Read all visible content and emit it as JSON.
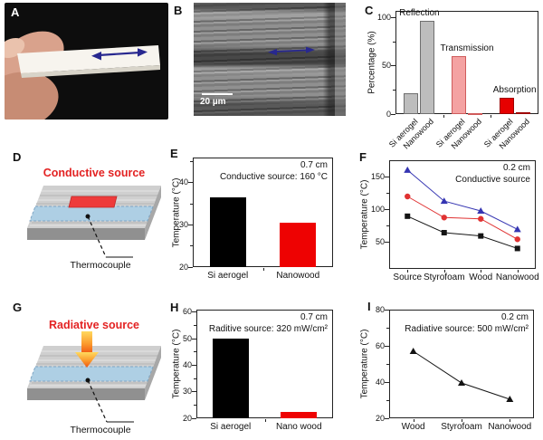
{
  "figure": {
    "background": "#ffffff",
    "accent_red": "#e32222",
    "arrow_blue": "#28288f",
    "panels": {
      "A": {
        "label": "A",
        "kind": "photo-of-aerogel-strip",
        "arrow_icon_color": "#28288f"
      },
      "B": {
        "label": "B",
        "kind": "sem-image",
        "scale_bar_text": "20 µm",
        "arrow_icon_color": "#28288f"
      },
      "C": {
        "label": "C",
        "chart_data": {
          "type": "bar",
          "ylabel": "Percentage (%)",
          "ylim": [
            0,
            107
          ],
          "yticks": [
            0,
            50,
            100
          ],
          "yticks_minor": [
            25,
            75
          ],
          "grid": false,
          "groups": [
            {
              "name": "Reflection",
              "fill": "#bdbdbd",
              "edge": "#6f6f6f",
              "categories": [
                "Si aerogel",
                "Nanowood"
              ],
              "values": [
                22,
                97
              ]
            },
            {
              "name": "Transmission",
              "fill": "#f4a2a2",
              "edge": "#cf5b5b",
              "categories": [
                "Si aerogel",
                "Nanowood"
              ],
              "values": [
                60,
                1
              ]
            },
            {
              "name": "Absorption",
              "fill": "#e60000",
              "edge": "#9e0000",
              "categories": [
                "Si aerogel",
                "Nanowood"
              ],
              "values": [
                17,
                2
              ]
            }
          ]
        }
      },
      "D": {
        "label": "D",
        "title": "Conductive source",
        "title_color": "#e32222",
        "callout": "Thermocouple"
      },
      "E": {
        "label": "E",
        "chart_data": {
          "type": "bar",
          "ylabel": "Temperature (°C)",
          "ylim": [
            20,
            46
          ],
          "yticks": [
            20,
            30,
            40
          ],
          "yticks_minor": [
            25,
            35,
            45
          ],
          "grid": false,
          "categories": [
            "Si aerogel",
            "Nanowood"
          ],
          "values": [
            36.5,
            30.5
          ],
          "colors": [
            "#000000",
            "#ee0202"
          ],
          "annotations": [
            "0.7 cm",
            "Conductive source: 160 °C"
          ]
        }
      },
      "F": {
        "label": "F",
        "chart_data": {
          "type": "line",
          "ylabel": "Temperature (°C)",
          "ylim": [
            10,
            175
          ],
          "yticks": [
            50,
            100,
            150
          ],
          "yticks_minor": [
            75,
            125
          ],
          "grid": false,
          "categories": [
            "Source",
            "Styrofoam",
            "Wood",
            "Nanowood"
          ],
          "series": [
            {
              "name": "blue-triangle-series",
              "marker": "triangle",
              "color": "#3535b2",
              "values": [
                160,
                113,
                98,
                70
              ]
            },
            {
              "name": "red-circle-series",
              "marker": "circle",
              "color": "#e03232",
              "values": [
                120,
                88,
                86,
                55
              ]
            },
            {
              "name": "black-square-series",
              "marker": "square",
              "color": "#141414",
              "values": [
                90,
                65,
                60,
                41
              ]
            }
          ],
          "annotations": [
            "0.2 cm",
            "Conductive source"
          ]
        }
      },
      "G": {
        "label": "G",
        "title": "Radiative source",
        "title_color": "#e32222",
        "callout": "Thermocouple"
      },
      "H": {
        "label": "H",
        "chart_data": {
          "type": "bar",
          "ylabel": "Temperature (°C)",
          "ylim": [
            20,
            61
          ],
          "yticks": [
            20,
            30,
            40,
            50,
            60
          ],
          "yticks_minor": [
            25,
            35,
            45,
            55
          ],
          "grid": false,
          "categories": [
            "Si aerogel",
            "Nano wood"
          ],
          "values": [
            50,
            22.5
          ],
          "colors": [
            "#000000",
            "#ee0202"
          ],
          "annotations": [
            "0.7 cm",
            "Raditive source: 320 mW/cm²"
          ]
        }
      },
      "I": {
        "label": "I",
        "chart_data": {
          "type": "line",
          "ylabel": "Temperature (°C)",
          "ylim": [
            20,
            80
          ],
          "yticks": [
            20,
            40,
            60,
            80
          ],
          "yticks_minor": [
            30,
            50,
            70
          ],
          "grid": false,
          "categories": [
            "Wood",
            "Styrofoam",
            "Nanowood"
          ],
          "series": [
            {
              "name": "black-triangle-series",
              "marker": "triangle",
              "color": "#141414",
              "values": [
                57,
                39.5,
                30.5
              ]
            }
          ],
          "annotations": [
            "0.2 cm",
            "Radiative source: 500 mW/cm²"
          ]
        }
      }
    }
  }
}
